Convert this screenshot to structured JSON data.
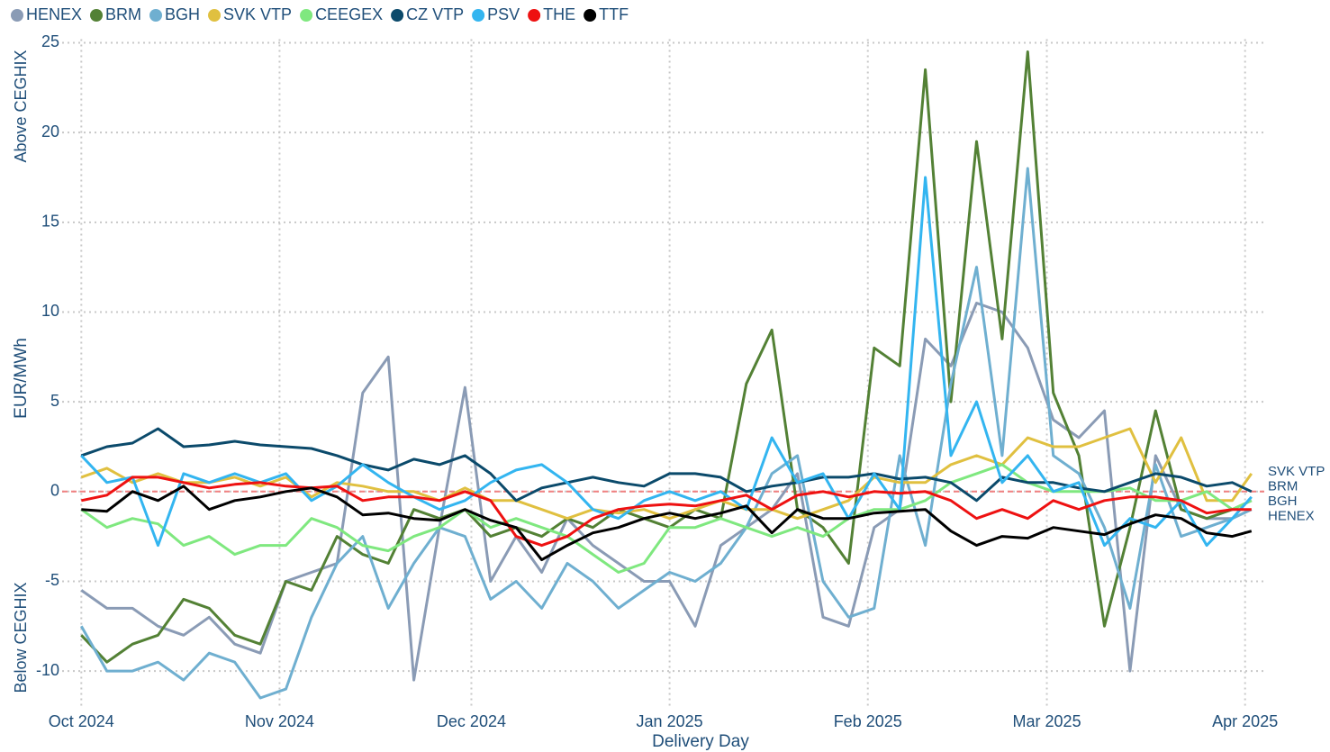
{
  "chart_data": {
    "type": "line",
    "x_label": "Delivery Day",
    "y_label": "EUR/MWh",
    "y_label_top": "Above CEGHIX",
    "y_label_bottom": "Below CEGHIX",
    "x": [
      0,
      4,
      8,
      12,
      16,
      20,
      24,
      28,
      32,
      36,
      40,
      44,
      48,
      52,
      56,
      60,
      64,
      68,
      72,
      76,
      80,
      84,
      88,
      92,
      96,
      100,
      104,
      108,
      112,
      116,
      120,
      124,
      128,
      132,
      136,
      140,
      144,
      148,
      152,
      156,
      160,
      164,
      168,
      172,
      176,
      180,
      183
    ],
    "xlim": [
      -3,
      185
    ],
    "xticks": [
      {
        "value": 0,
        "label": "Oct 2024"
      },
      {
        "value": 31,
        "label": "Nov 2024"
      },
      {
        "value": 61,
        "label": "Dec 2024"
      },
      {
        "value": 92,
        "label": "Jan 2025"
      },
      {
        "value": 123,
        "label": "Feb 2025"
      },
      {
        "value": 151,
        "label": "Mar 2025"
      },
      {
        "value": 182,
        "label": "Apr 2025"
      }
    ],
    "ylim": [
      -12,
      25.2
    ],
    "yticks": [
      -10,
      -5,
      0,
      5,
      10,
      15,
      20,
      25
    ],
    "grid": true,
    "reference_line": 0,
    "legend": "top",
    "series": [
      {
        "name": "HENEX",
        "color": "#8a9bb5",
        "values": [
          -5.5,
          -6.5,
          -6.5,
          -7.5,
          -8.0,
          -7.0,
          -8.5,
          -9.0,
          -5.0,
          -4.5,
          -4.0,
          5.5,
          7.5,
          -10.5,
          -2.0,
          5.8,
          -5.0,
          -2.5,
          -4.5,
          -1.5,
          -3.0,
          -4.0,
          -5.0,
          -5.0,
          -7.5,
          -3.0,
          -2.0,
          -1.0,
          1.0,
          -7.0,
          -7.5,
          -2.0,
          -1.0,
          8.5,
          7.0,
          10.5,
          10.0,
          8.0,
          4.0,
          3.0,
          4.5,
          -10.0,
          2.0,
          -1.0,
          -1.5,
          -1.5,
          -1.0
        ]
      },
      {
        "name": "BRM",
        "color": "#538135",
        "values": [
          -8.0,
          -9.5,
          -8.5,
          -8.0,
          -6.0,
          -6.5,
          -8.0,
          -8.5,
          -5.0,
          -5.5,
          -2.5,
          -3.5,
          -4.0,
          -1.0,
          -1.5,
          -1.0,
          -2.5,
          -2.0,
          -2.5,
          -1.5,
          -2.0,
          -1.0,
          -1.5,
          -2.0,
          -1.0,
          -1.5,
          6.0,
          9.0,
          -1.0,
          -2.0,
          -4.0,
          8.0,
          7.0,
          23.5,
          5.0,
          19.5,
          8.5,
          24.5,
          5.5,
          2.0,
          -7.5,
          -2.0,
          4.5,
          -1.0,
          -1.5,
          -1.0,
          -0.5
        ]
      },
      {
        "name": "BGH",
        "color": "#6fafd0",
        "values": [
          -7.5,
          -10.0,
          -10.0,
          -9.5,
          -10.5,
          -9.0,
          -9.5,
          -11.5,
          -11.0,
          -7.0,
          -4.0,
          -2.5,
          -6.5,
          -4.0,
          -2.0,
          -2.5,
          -6.0,
          -5.0,
          -6.5,
          -4.0,
          -5.0,
          -6.5,
          -5.5,
          -4.5,
          -5.0,
          -4.0,
          -2.0,
          1.0,
          2.0,
          -5.0,
          -7.0,
          -6.5,
          2.0,
          -3.0,
          6.0,
          12.5,
          2.0,
          18.0,
          2.0,
          1.0,
          -2.0,
          -6.5,
          1.5,
          -2.5,
          -2.0,
          -1.5,
          -1.0
        ]
      },
      {
        "name": "SVK VTP",
        "color": "#e0c040",
        "values": [
          0.8,
          1.3,
          0.5,
          1.0,
          0.5,
          0.5,
          0.8,
          0.3,
          0.8,
          -0.3,
          0.5,
          0.3,
          0.0,
          0.0,
          -0.5,
          0.2,
          -0.5,
          -0.5,
          -1.0,
          -1.5,
          -1.0,
          -1.2,
          -1.0,
          -1.5,
          -1.0,
          -0.5,
          -1.0,
          -1.0,
          -1.5,
          -1.0,
          -0.5,
          0.8,
          0.5,
          0.5,
          1.5,
          2.0,
          1.5,
          3.0,
          2.5,
          2.5,
          3.0,
          3.5,
          0.5,
          3.0,
          -0.5,
          -0.5,
          1.0
        ]
      },
      {
        "name": "CEEGEX",
        "color": "#7fe87f",
        "values": [
          -1.0,
          -2.0,
          -1.5,
          -1.8,
          -3.0,
          -2.5,
          -3.5,
          -3.0,
          -3.0,
          -1.5,
          -2.0,
          -3.0,
          -3.3,
          -2.5,
          -2.0,
          -1.0,
          -2.0,
          -1.5,
          -2.0,
          -2.5,
          -3.5,
          -4.5,
          -4.0,
          -2.0,
          -2.0,
          -1.5,
          -2.0,
          -2.5,
          -2.0,
          -2.5,
          -1.5,
          -1.0,
          -1.0,
          -0.5,
          0.5,
          1.0,
          1.5,
          0.5,
          0.0,
          0.0,
          0.0,
          0.2,
          -0.5,
          -0.5,
          0.0,
          -1.0,
          -0.5
        ]
      },
      {
        "name": "CZ VTP",
        "color": "#0b4a6b",
        "values": [
          2.0,
          2.5,
          2.7,
          3.5,
          2.5,
          2.6,
          2.8,
          2.6,
          2.5,
          2.4,
          2.0,
          1.5,
          1.2,
          1.8,
          1.5,
          2.0,
          1.0,
          -0.5,
          0.2,
          0.5,
          0.8,
          0.5,
          0.3,
          1.0,
          1.0,
          0.8,
          0.0,
          0.3,
          0.5,
          0.8,
          0.8,
          1.0,
          0.7,
          0.8,
          0.5,
          -0.5,
          0.8,
          0.5,
          0.5,
          0.2,
          0.0,
          0.5,
          1.0,
          0.8,
          0.3,
          0.5,
          0.0
        ]
      },
      {
        "name": "PSV",
        "color": "#33b5f0",
        "values": [
          2.0,
          0.5,
          0.8,
          -3.0,
          1.0,
          0.5,
          1.0,
          0.5,
          1.0,
          -0.5,
          0.3,
          1.5,
          0.5,
          -0.3,
          -1.0,
          -0.5,
          0.5,
          1.2,
          1.5,
          0.5,
          -1.0,
          -1.5,
          -0.5,
          0.0,
          -0.5,
          0.0,
          -1.0,
          3.0,
          0.5,
          1.0,
          -1.5,
          1.0,
          -1.0,
          17.5,
          2.0,
          5.0,
          0.5,
          2.0,
          0.0,
          0.5,
          -3.0,
          -1.5,
          -2.0,
          -0.5,
          -3.0,
          -1.5,
          -0.3
        ]
      },
      {
        "name": "THE",
        "color": "#ee1111",
        "values": [
          -0.5,
          -0.2,
          0.8,
          0.8,
          0.5,
          0.2,
          0.4,
          0.5,
          0.3,
          0.2,
          0.3,
          -0.5,
          -0.3,
          -0.3,
          -0.5,
          0.0,
          -0.5,
          -2.5,
          -3.0,
          -2.5,
          -1.5,
          -1.0,
          -0.8,
          -0.7,
          -0.8,
          -0.5,
          -0.2,
          -1.0,
          -0.2,
          0.0,
          -0.3,
          0.0,
          -0.1,
          0.0,
          -0.5,
          -1.5,
          -1.0,
          -1.5,
          -0.5,
          -1.0,
          -0.5,
          -0.3,
          -0.3,
          -0.5,
          -1.2,
          -1.0,
          -1.0
        ]
      },
      {
        "name": "TTF",
        "color": "#000000",
        "values": [
          -1.0,
          -1.1,
          0.0,
          -0.5,
          0.3,
          -1.0,
          -0.5,
          -0.3,
          0.0,
          0.2,
          -0.3,
          -1.3,
          -1.2,
          -1.5,
          -1.6,
          -1.0,
          -1.6,
          -2.0,
          -3.8,
          -3.0,
          -2.3,
          -2.0,
          -1.5,
          -1.2,
          -1.5,
          -1.2,
          -0.8,
          -2.3,
          -1.0,
          -1.5,
          -1.5,
          -1.2,
          -1.1,
          -1.0,
          -2.2,
          -3.0,
          -2.5,
          -2.6,
          -2.0,
          -2.2,
          -2.4,
          -1.8,
          -1.3,
          -1.5,
          -2.3,
          -2.5,
          -2.2
        ]
      }
    ],
    "end_labels": [
      "SVK VTP",
      "BRM",
      "BGH",
      "HENEX"
    ]
  }
}
